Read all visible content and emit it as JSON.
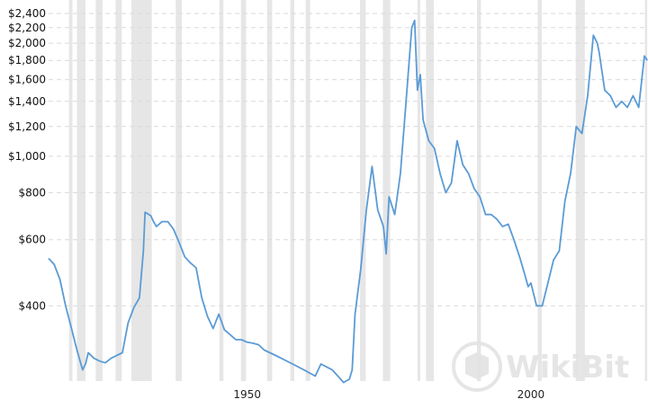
{
  "chart_data": {
    "type": "line",
    "y_scale": "log",
    "ylim": [
      255,
      2400
    ],
    "xlim": [
      1915,
      2020
    ],
    "y_ticks": [
      "$400",
      "$600",
      "$800",
      "$1,000",
      "$1,200",
      "$1,400",
      "$1,600",
      "$1,800",
      "$2,000",
      "$2,200",
      "$2,400"
    ],
    "y_tick_values": [
      400,
      600,
      800,
      1000,
      1200,
      1400,
      1600,
      1800,
      2000,
      2200,
      2400
    ],
    "x_ticks": [
      "1950",
      "2000"
    ],
    "x_tick_values": [
      1950,
      2000
    ],
    "grid": true,
    "series_color": "#5b9bd5",
    "recession_color": "#e6e6e6",
    "recessions": [
      [
        1918.6,
        1919.2
      ],
      [
        1920.0,
        1921.5
      ],
      [
        1923.3,
        1924.5
      ],
      [
        1926.8,
        1927.9
      ],
      [
        1929.6,
        1933.2
      ],
      [
        1937.4,
        1938.5
      ],
      [
        1945.1,
        1945.8
      ],
      [
        1948.9,
        1949.8
      ],
      [
        1953.5,
        1954.4
      ],
      [
        1957.6,
        1958.3
      ],
      [
        1960.3,
        1961.1
      ],
      [
        1969.9,
        1970.9
      ],
      [
        1973.9,
        1975.2
      ],
      [
        1980.0,
        1980.5
      ],
      [
        1981.5,
        1982.9
      ],
      [
        1990.5,
        1991.2
      ],
      [
        2001.2,
        2001.9
      ],
      [
        2007.9,
        2009.5
      ],
      [
        2020.1,
        2020.5
      ]
    ],
    "series": [
      {
        "x": [
          1915,
          1916,
          1917,
          1918,
          1919,
          1920,
          1921,
          1921.5,
          1922,
          1923,
          1924,
          1925,
          1926,
          1927,
          1928,
          1929,
          1930,
          1931,
          1931.7,
          1932,
          1933,
          1933.5,
          1934,
          1935,
          1936,
          1937,
          1938,
          1939,
          1940,
          1941,
          1942,
          1943,
          1944,
          1945,
          1946,
          1947,
          1948,
          1949,
          1950,
          1951,
          1952,
          1953,
          1955,
          1958,
          1960,
          1962,
          1963,
          1964,
          1965,
          1966,
          1967,
          1968,
          1968.5,
          1969,
          1970,
          1971,
          1972,
          1973,
          1974,
          1974.5,
          1975,
          1976,
          1977,
          1978,
          1979,
          1979.5,
          1980,
          1980.5,
          1981,
          1982,
          1983,
          1984,
          1985,
          1986,
          1987,
          1988,
          1989,
          1990,
          1991,
          1992,
          1993,
          1994,
          1995,
          1996,
          1997,
          1998,
          1999,
          1999.5,
          2000,
          2001,
          2002,
          2003,
          2004,
          2005,
          2006,
          2007,
          2008,
          2009,
          2010,
          2011,
          2011.7,
          2012,
          2013,
          2014,
          2015,
          2016,
          2017,
          2018,
          2019,
          2020,
          2020.5
        ],
        "values": [
          535,
          515,
          470,
          400,
          350,
          305,
          270,
          280,
          300,
          290,
          285,
          282,
          290,
          295,
          300,
          360,
          395,
          420,
          560,
          710,
          695,
          670,
          650,
          670,
          670,
          640,
          590,
          540,
          520,
          505,
          420,
          375,
          348,
          380,
          345,
          335,
          325,
          325,
          320,
          318,
          315,
          305,
          295,
          280,
          270,
          260,
          280,
          275,
          270,
          260,
          250,
          255,
          270,
          380,
          500,
          720,
          940,
          720,
          650,
          550,
          780,
          700,
          900,
          1400,
          2200,
          2300,
          1500,
          1650,
          1250,
          1100,
          1050,
          900,
          800,
          850,
          1100,
          950,
          900,
          820,
          780,
          700,
          700,
          680,
          650,
          660,
          600,
          540,
          480,
          450,
          460,
          400,
          400,
          460,
          530,
          560,
          760,
          900,
          1200,
          1150,
          1450,
          2100,
          2000,
          1900,
          1500,
          1450,
          1350,
          1400,
          1350,
          1450,
          1350,
          1850,
          1800
        ]
      }
    ],
    "watermark": "WikiBit"
  }
}
